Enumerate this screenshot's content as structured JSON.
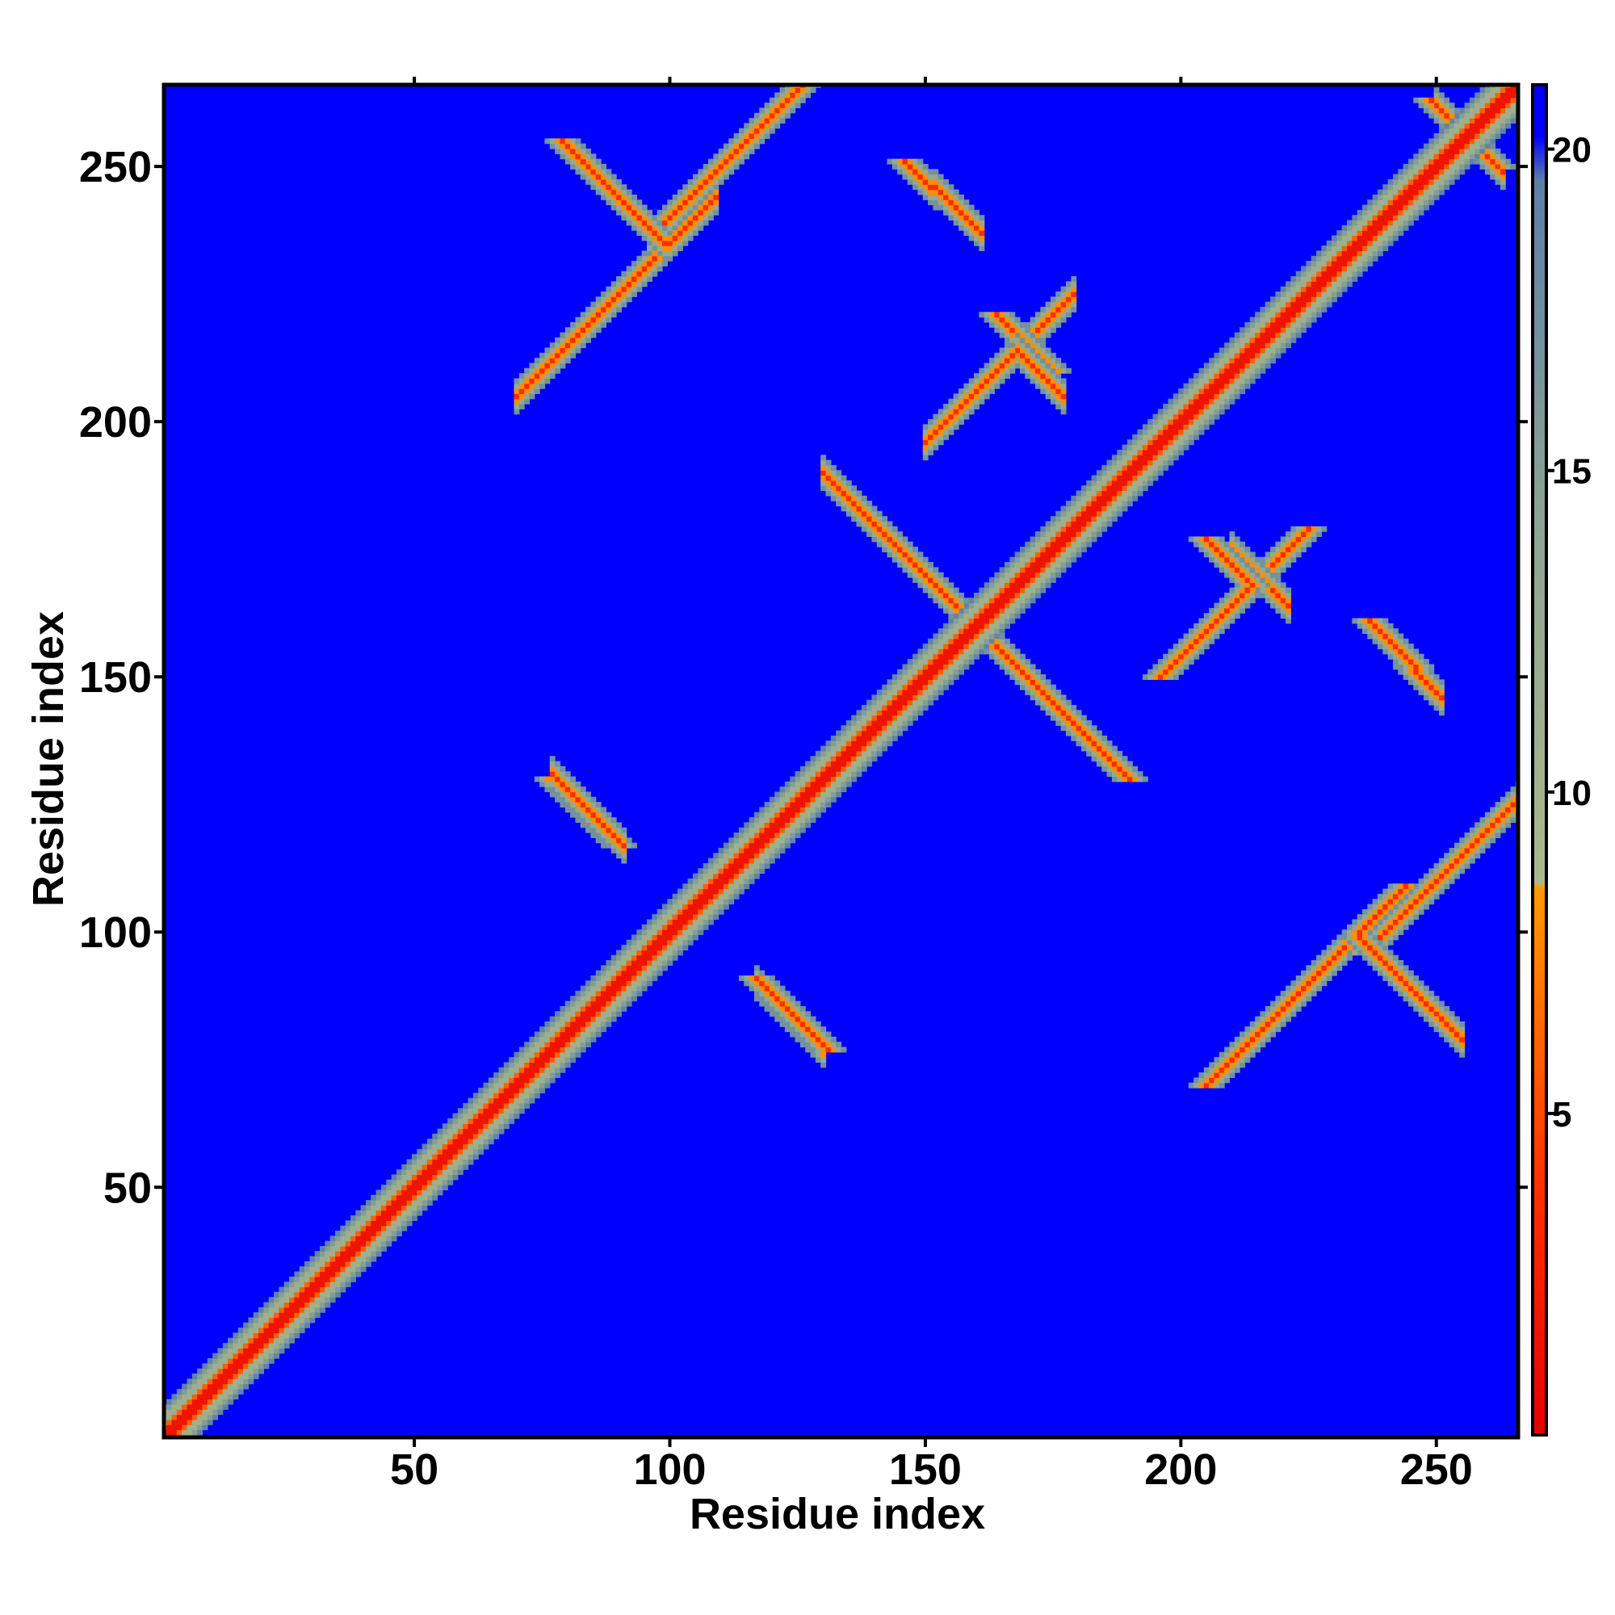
{
  "chart_data": {
    "type": "heatmap",
    "title": "",
    "xlabel": "Residue index",
    "ylabel": "Residue index",
    "xlim": [
      1,
      266
    ],
    "ylim": [
      1,
      266
    ],
    "x_ticks": [
      50,
      100,
      150,
      200,
      250
    ],
    "y_ticks": [
      50,
      100,
      150,
      200,
      250
    ],
    "colorbar": {
      "ticks": [
        5,
        10,
        15,
        20
      ],
      "range": [
        0,
        21
      ],
      "stops": [
        {
          "value": 0,
          "color": "#e60000"
        },
        {
          "value": 4,
          "color": "#ff3300"
        },
        {
          "value": 8.5,
          "color": "#ff9900"
        },
        {
          "value": 8.6,
          "color": "#a9b98c"
        },
        {
          "value": 14,
          "color": "#8ea592"
        },
        {
          "value": 19.5,
          "color": "#5d80a8"
        },
        {
          "value": 20.2,
          "color": "#0000ff"
        },
        {
          "value": 21,
          "color": "#0000ff"
        }
      ]
    },
    "background_color": "#0000ff",
    "description": "symmetric residue-residue distance map; strong diagonal band",
    "contact_bands": [
      {
        "type": "diagonal",
        "i0": 1,
        "i1": 266,
        "width": 6
      },
      {
        "type": "anti",
        "i0": 84,
        "j0": 250,
        "length": 16,
        "width": 3
      },
      {
        "type": "anti",
        "i0": 152,
        "j0": 246,
        "length": 10,
        "width": 3
      },
      {
        "type": "anti",
        "i0": 168,
        "j0": 214,
        "length": 10,
        "width": 3
      },
      {
        "type": "anti",
        "i0": 130,
        "j0": 190,
        "length": 55,
        "width": 3
      },
      {
        "type": "anti",
        "i0": 77,
        "j0": 131,
        "length": 15,
        "width": 3
      },
      {
        "type": "anti",
        "i0": 117,
        "j0": 90,
        "length": 14,
        "width": 3
      },
      {
        "type": "anti",
        "i0": 210,
        "j0": 175,
        "length": 12,
        "width": 3
      },
      {
        "type": "anti",
        "i0": 242,
        "j0": 155,
        "length": 10,
        "width": 3
      },
      {
        "type": "anti",
        "i0": 242,
        "j0": 92,
        "length": 14,
        "width": 3
      },
      {
        "type": "anti",
        "i0": 250,
        "j0": 262,
        "length": 14,
        "width": 3
      },
      {
        "type": "parallel",
        "i0": 96,
        "j0": 236,
        "length": 40,
        "width": 3
      },
      {
        "type": "parallel",
        "i0": 150,
        "j0": 196,
        "length": 30,
        "width": 3
      },
      {
        "type": "parallel",
        "i0": 70,
        "j0": 205,
        "length": 40,
        "width": 3
      }
    ]
  }
}
